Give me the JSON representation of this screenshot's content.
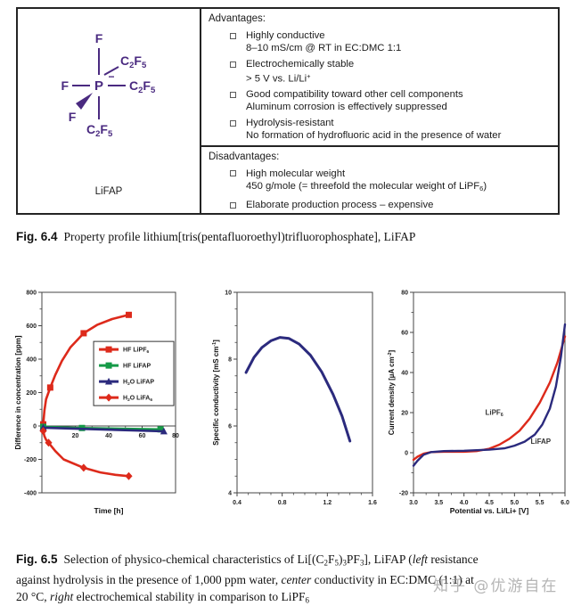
{
  "table": {
    "compound_label": "LiFAP",
    "structure": {
      "color": "#4a2a80",
      "center": "P",
      "charge": "−",
      "f_top": "F",
      "f_left": "F",
      "f_wedge": "F",
      "c2f5": [
        {
          "t": "C"
        },
        {
          "t": "2",
          "s": "sub"
        },
        {
          "t": "F"
        },
        {
          "t": "5",
          "s": "sub"
        }
      ]
    },
    "advantages": {
      "header": "Advantages:",
      "items": [
        {
          "title": [
            {
              "t": "Highly conductive"
            }
          ],
          "detail": [
            {
              "t": "8–10 mS/cm @ RT in EC:DMC 1:1"
            }
          ]
        },
        {
          "title": [
            {
              "t": "Electrochemically stable"
            }
          ],
          "detail": [
            {
              "t": "> 5 V vs. Li/Li"
            },
            {
              "t": "+",
              "s": "sup"
            }
          ]
        },
        {
          "title": [
            {
              "t": "Good compatibility toward other cell components"
            }
          ],
          "detail": [
            {
              "t": "Aluminum corrosion is effectively suppressed"
            }
          ]
        },
        {
          "title": [
            {
              "t": "Hydrolysis-resistant"
            }
          ],
          "detail": [
            {
              "t": "No formation of hydrofluoric acid in the presence of water"
            }
          ]
        }
      ]
    },
    "disadvantages": {
      "header": "Disadvantages:",
      "items": [
        {
          "title": [
            {
              "t": "High molecular weight"
            }
          ],
          "detail": [
            {
              "t": "450 g/mole (= threefold the molecular weight of LiPF"
            },
            {
              "t": "6",
              "s": "sub"
            },
            {
              "t": ")"
            }
          ]
        },
        {
          "title": [
            {
              "t": "Elaborate production process – expensive"
            }
          ],
          "detail": null
        }
      ]
    }
  },
  "captions": {
    "fig64": {
      "label": "Fig. 6.4",
      "lines": [
        [
          {
            "t": "Property profile lithium[tris(pentafluoroethyl)trifluorophosphate], LiFAP"
          }
        ]
      ]
    },
    "fig65": {
      "label": "Fig. 6.5",
      "lines": [
        [
          {
            "t": "Selection of physico-chemical characteristics of Li[(C"
          },
          {
            "t": "2",
            "s": "sub"
          },
          {
            "t": "F"
          },
          {
            "t": "5",
            "s": "sub"
          },
          {
            "t": ")"
          },
          {
            "t": "3",
            "s": "sub"
          },
          {
            "t": "PF"
          },
          {
            "t": "3",
            "s": "sub"
          },
          {
            "t": "], LiFAP ("
          },
          {
            "t": "left",
            "s": "i"
          },
          {
            "t": " resistance"
          }
        ],
        [
          {
            "t": "against hydrolysis in the presence of 1,000 ppm water, "
          },
          {
            "t": "center",
            "s": "i"
          },
          {
            "t": " conductivity in EC:DMC (1:1) at"
          }
        ],
        [
          {
            "t": "20 °C, "
          },
          {
            "t": "right",
            "s": "i"
          },
          {
            "t": " electrochemical stability in comparison to LiPF"
          },
          {
            "t": "6",
            "s": "sub"
          }
        ]
      ]
    }
  },
  "watermark": {
    "text": "知乎 @优游自在"
  },
  "colors": {
    "red": "#dd2a1b",
    "green": "#159a47",
    "navy": "#2b2a7d",
    "purple": "#4a2a80",
    "frame": "#444444",
    "text": "#1c1c1c"
  },
  "chart_data": [
    {
      "type": "line",
      "title": "",
      "xlabel": [
        {
          "t": "Time [h]"
        }
      ],
      "ylabel": [
        {
          "t": "Difference in concentration [ppm]"
        }
      ],
      "xlim": [
        0,
        80
      ],
      "ylim": [
        -400,
        800
      ],
      "xticks": {
        "values": [
          20,
          40,
          60,
          80
        ],
        "labels": [
          "20",
          "40",
          "60",
          "80"
        ]
      },
      "yticks": {
        "values": [
          -400,
          -200,
          0,
          200,
          400,
          600,
          800
        ],
        "labels": [
          "-400",
          "-200",
          "0",
          "200",
          "400",
          "600",
          "800"
        ]
      },
      "xminor": 10,
      "yminor": 100,
      "x_axis_at": 0,
      "grid": false,
      "legend": {
        "x": 0.387,
        "y": 0.245,
        "w": 0.6,
        "h": 0.32
      },
      "series": [
        {
          "name": [
            {
              "t": "HF LiPF"
            },
            {
              "t": "6",
              "s": "sub"
            }
          ],
          "color": "#dd2a1b",
          "marker": "square",
          "width": 2.6,
          "line": [
            [
              0.8,
              10
            ],
            [
              1.5,
              90
            ],
            [
              2.5,
              160
            ],
            [
              5,
              230
            ],
            [
              8,
              305
            ],
            [
              12,
              390
            ],
            [
              17,
              470
            ],
            [
              25,
              555
            ],
            [
              33,
              605
            ],
            [
              42,
              640
            ],
            [
              52,
              665
            ]
          ],
          "points": [
            [
              0.8,
              10
            ],
            [
              5,
              230
            ],
            [
              25,
              555
            ],
            [
              52,
              665
            ]
          ]
        },
        {
          "name": [
            {
              "t": "HF LiFAP"
            }
          ],
          "color": "#159a47",
          "marker": "square",
          "width": 2.6,
          "line": [
            [
              0.8,
              -5
            ],
            [
              24,
              -12
            ],
            [
              71,
              -20
            ]
          ],
          "points": [
            [
              0.8,
              -5
            ],
            [
              24,
              -12
            ],
            [
              71,
              -20
            ]
          ]
        },
        {
          "name": [
            {
              "t": "H"
            },
            {
              "t": "2",
              "s": "sub"
            },
            {
              "t": "O LiFAP"
            }
          ],
          "color": "#2b2a7d",
          "marker": "triangle",
          "width": 2.6,
          "line": [
            [
              0.8,
              -10
            ],
            [
              73,
              -32
            ]
          ],
          "points": [
            [
              0.8,
              -10
            ],
            [
              73,
              -32
            ]
          ]
        },
        {
          "name": [
            {
              "t": "H"
            },
            {
              "t": "2",
              "s": "sub"
            },
            {
              "t": "O LiFA"
            },
            {
              "t": "6",
              "s": "sub"
            }
          ],
          "color": "#dd2a1b",
          "marker": "diamond",
          "width": 2.6,
          "line": [
            [
              0.8,
              -30
            ],
            [
              1.5,
              -60
            ],
            [
              2.5,
              -82
            ],
            [
              4,
              -100
            ],
            [
              8,
              -150
            ],
            [
              13,
              -200
            ],
            [
              25,
              -250
            ],
            [
              35,
              -278
            ],
            [
              44,
              -292
            ],
            [
              52,
              -300
            ]
          ],
          "points": [
            [
              0.8,
              -30
            ],
            [
              4,
              -100
            ],
            [
              25,
              -250
            ],
            [
              52,
              -300
            ]
          ]
        }
      ]
    },
    {
      "type": "line",
      "title": "",
      "xlabel": [],
      "ylabel": [
        {
          "t": "Specific conductivity [mS cm"
        },
        {
          "t": "-1",
          "s": "sup"
        },
        {
          "t": "]"
        }
      ],
      "xlim": [
        0.4,
        1.6
      ],
      "ylim": [
        4,
        10
      ],
      "xticks": {
        "values": [
          0.4,
          0.8,
          1.2,
          1.6
        ],
        "labels": [
          "0.4",
          "0.8",
          "1.2",
          "1.6"
        ]
      },
      "yticks": {
        "values": [
          4,
          6,
          8,
          10
        ],
        "labels": [
          "4",
          "6",
          "8",
          "10"
        ]
      },
      "xminor": 0.1,
      "yminor": 0.5,
      "grid": false,
      "series": [
        {
          "name": [
            {
              "t": "LiFAP"
            }
          ],
          "color": "#2b2a7d",
          "marker": "none",
          "width": 3,
          "line": [
            [
              0.48,
              7.6
            ],
            [
              0.55,
              8.05
            ],
            [
              0.62,
              8.35
            ],
            [
              0.7,
              8.55
            ],
            [
              0.78,
              8.65
            ],
            [
              0.86,
              8.62
            ],
            [
              0.95,
              8.45
            ],
            [
              1.05,
              8.12
            ],
            [
              1.15,
              7.62
            ],
            [
              1.25,
              6.95
            ],
            [
              1.33,
              6.3
            ],
            [
              1.4,
              5.55
            ]
          ],
          "points": []
        }
      ]
    },
    {
      "type": "line",
      "title": "",
      "xlabel": [
        {
          "t": "Potential vs. Li/Li+ [V]"
        }
      ],
      "ylabel": [
        {
          "t": "Current density [µA cm"
        },
        {
          "t": "-2",
          "s": "sup"
        },
        {
          "t": "]"
        }
      ],
      "xlim": [
        3.0,
        6.0
      ],
      "ylim": [
        -20,
        80
      ],
      "xticks": {
        "values": [
          3.0,
          3.5,
          4.0,
          4.5,
          5.0,
          5.5,
          6.0
        ],
        "labels": [
          "3.0",
          "3.5",
          "4.0",
          "4.5",
          "5.0",
          "5.5",
          "6.0"
        ]
      },
      "yticks": {
        "values": [
          -20,
          0,
          20,
          40,
          60,
          80
        ],
        "labels": [
          "-20",
          "0",
          "20",
          "40",
          "60",
          "80"
        ]
      },
      "xminor": 0.25,
      "yminor": 10,
      "grid": false,
      "annotations": [
        {
          "text": [
            {
              "t": "LiPF"
            },
            {
              "t": "6",
              "s": "sub"
            }
          ],
          "x": 4.42,
          "y": 19
        },
        {
          "text": [
            {
              "t": "LiFAP"
            }
          ],
          "x": 5.32,
          "y": 4.5
        }
      ],
      "series": [
        {
          "name": [
            {
              "t": "LiPF"
            },
            {
              "t": "6",
              "s": "sub"
            }
          ],
          "color": "#dd2a1b",
          "marker": "none",
          "width": 2.4,
          "line": [
            [
              3.0,
              -3.5
            ],
            [
              3.08,
              -2
            ],
            [
              3.2,
              -0.5
            ],
            [
              3.35,
              0.3
            ],
            [
              3.6,
              0.5
            ],
            [
              4.0,
              0.5
            ],
            [
              4.25,
              0.8
            ],
            [
              4.5,
              2
            ],
            [
              4.7,
              4
            ],
            [
              4.9,
              7
            ],
            [
              5.1,
              11
            ],
            [
              5.3,
              17
            ],
            [
              5.5,
              25
            ],
            [
              5.7,
              35
            ],
            [
              5.85,
              45
            ],
            [
              6.0,
              58
            ]
          ],
          "points": []
        },
        {
          "name": [
            {
              "t": "LiFAP"
            }
          ],
          "color": "#2b2a7d",
          "marker": "none",
          "width": 2.4,
          "line": [
            [
              3.0,
              -6.5
            ],
            [
              3.08,
              -4
            ],
            [
              3.2,
              -1
            ],
            [
              3.35,
              0.3
            ],
            [
              3.6,
              0.8
            ],
            [
              4.0,
              1
            ],
            [
              4.5,
              1.5
            ],
            [
              4.8,
              2.2
            ],
            [
              5.0,
              3.5
            ],
            [
              5.2,
              5.5
            ],
            [
              5.4,
              9
            ],
            [
              5.55,
              14
            ],
            [
              5.7,
              22
            ],
            [
              5.82,
              33
            ],
            [
              5.92,
              48
            ],
            [
              6.0,
              64
            ]
          ],
          "points": []
        }
      ]
    }
  ]
}
